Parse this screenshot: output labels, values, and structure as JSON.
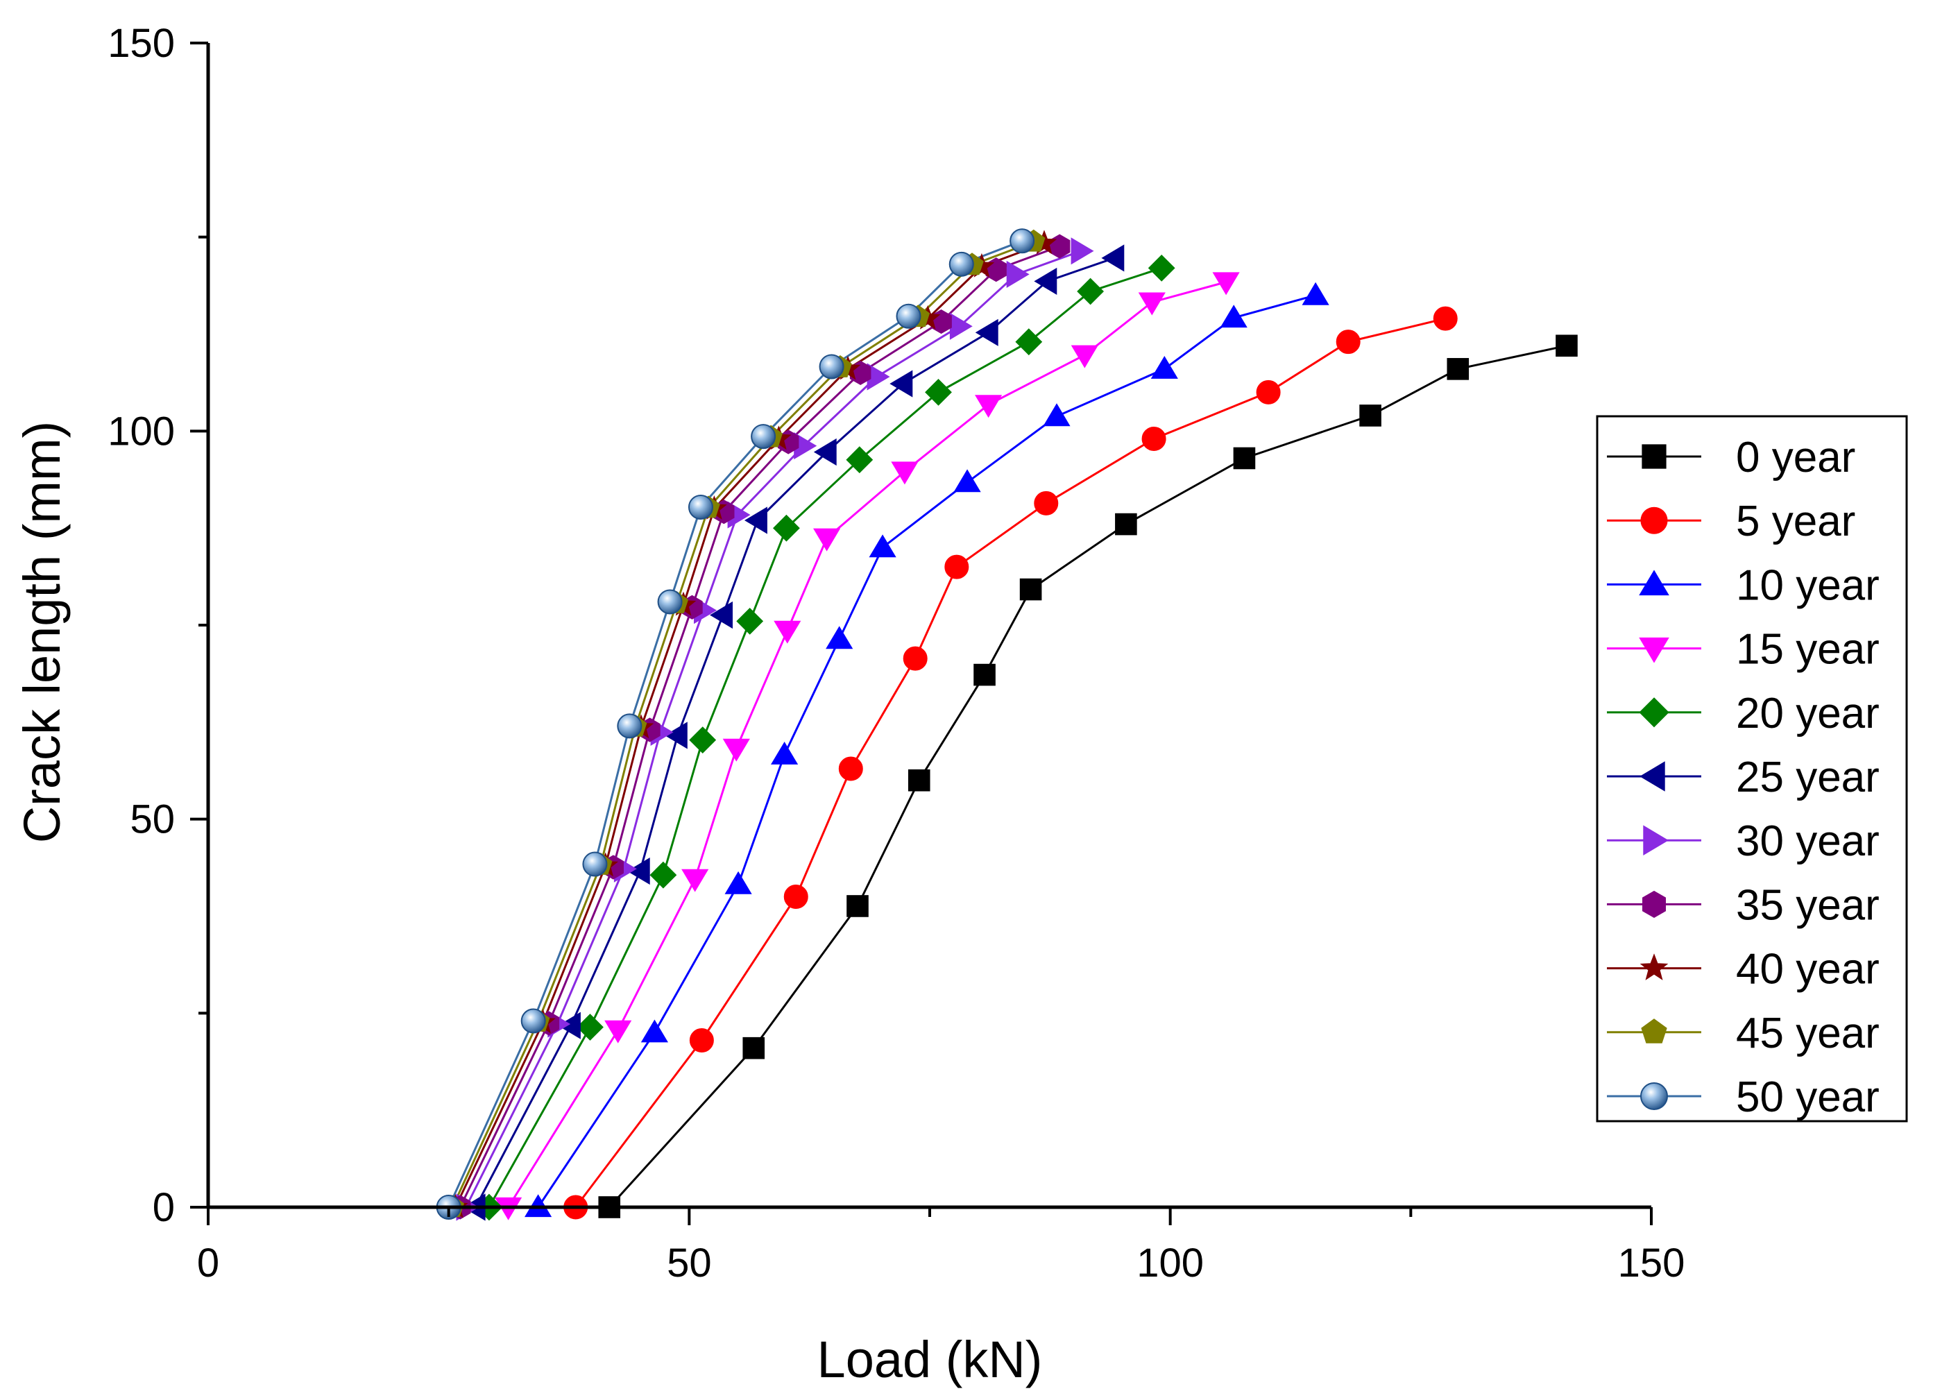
{
  "chart_data": {
    "type": "line",
    "xlabel": "Load (kN)",
    "ylabel": "Crack length (mm)",
    "xlim": [
      0,
      150
    ],
    "ylim": [
      0,
      150
    ],
    "xticks": [
      0,
      50,
      100,
      150
    ],
    "yticks": [
      0,
      50,
      100,
      150
    ],
    "xtick_labels": [
      "0",
      "50",
      "100",
      "150"
    ],
    "ytick_labels": [
      "0",
      "50",
      "100",
      "150"
    ],
    "grid": false,
    "legend_position": "right",
    "series": [
      {
        "name": "0 year",
        "color": "#000000",
        "marker": "square",
        "x": [
          41.7,
          56.7,
          67.5,
          73.9,
          80.7,
          85.5,
          95.4,
          107.7,
          120.8,
          129.9,
          141.2
        ],
        "y": [
          0,
          20.5,
          38.8,
          55,
          68.6,
          79.6,
          88,
          96.5,
          102,
          108,
          111
        ]
      },
      {
        "name": "5 year",
        "color": "#ff0000",
        "marker": "circle",
        "x": [
          38.2,
          51.3,
          61.1,
          66.8,
          73.5,
          77.8,
          87.1,
          98.3,
          110.2,
          118.5,
          128.6
        ],
        "y": [
          0,
          21.5,
          40,
          56.5,
          70.7,
          82.5,
          90.7,
          99,
          105,
          111.5,
          114.5
        ]
      },
      {
        "name": "10 year",
        "color": "#0000ff",
        "marker": "triangle-up",
        "x": [
          34.3,
          46.4,
          55.1,
          59.9,
          65.6,
          70.1,
          78.9,
          88.2,
          99.4,
          106.6,
          115.1
        ],
        "y": [
          0,
          22.5,
          41.6,
          58.3,
          73.2,
          85,
          93.4,
          101.9,
          108,
          114.6,
          117.5
        ]
      },
      {
        "name": "15 year",
        "color": "#ff00ff",
        "marker": "triangle-down",
        "x": [
          31.2,
          42.6,
          50.6,
          54.9,
          60.2,
          64.3,
          72.4,
          81.1,
          91.1,
          98.1,
          105.8
        ],
        "y": [
          0,
          22.8,
          42.3,
          59.1,
          74.3,
          86.2,
          94.8,
          103.4,
          109.8,
          116.6,
          119.2
        ]
      },
      {
        "name": "20 year",
        "color": "#008000",
        "marker": "diamond",
        "x": [
          29.2,
          39.7,
          47.3,
          51.4,
          56.3,
          60.1,
          67.7,
          75.9,
          85.3,
          91.7,
          99.1
        ],
        "y": [
          0,
          23.2,
          42.8,
          60.2,
          75.5,
          87.5,
          96.3,
          105,
          111.5,
          118,
          121
        ]
      },
      {
        "name": "25 year",
        "color": "#00008b",
        "marker": "triangle-left",
        "x": [
          27.8,
          37.7,
          44.9,
          48.8,
          53.5,
          57.1,
          64.3,
          72.2,
          81.1,
          87.2,
          94.2
        ],
        "y": [
          0,
          23.4,
          43.3,
          60.8,
          76.3,
          88.5,
          97.3,
          106.1,
          112.7,
          119.3,
          122.3
        ]
      },
      {
        "name": "30 year",
        "color": "#8a2be2",
        "marker": "triangle-right",
        "x": [
          26.8,
          36.3,
          43.2,
          47,
          51.5,
          55,
          61.9,
          69.5,
          78.1,
          84,
          90.7
        ],
        "y": [
          0,
          23.6,
          43.6,
          61.2,
          76.9,
          89.2,
          98.1,
          107,
          113.5,
          120.2,
          123.2
        ]
      },
      {
        "name": "35 year",
        "color": "#800080",
        "marker": "hexagon",
        "x": [
          26.2,
          35.4,
          42.1,
          45.9,
          50.3,
          53.6,
          60.3,
          67.8,
          76.2,
          81.9,
          88.5
        ],
        "y": [
          0,
          23.7,
          43.8,
          61.5,
          77.3,
          89.6,
          98.6,
          107.5,
          114.1,
          120.8,
          123.8
        ]
      },
      {
        "name": "40 year",
        "color": "#800000",
        "marker": "star",
        "x": [
          25.7,
          34.8,
          41.3,
          45,
          49.4,
          52.6,
          59.3,
          66.5,
          74.8,
          80.4,
          86.9
        ],
        "y": [
          0,
          23.8,
          44,
          61.8,
          77.6,
          90,
          99,
          108,
          114.5,
          121.2,
          124.2
        ]
      },
      {
        "name": "45 year",
        "color": "#808000",
        "marker": "pentagon",
        "x": [
          25.4,
          34.3,
          40.8,
          44.4,
          48.7,
          52,
          58.5,
          65.7,
          73.8,
          79.4,
          85.8
        ],
        "y": [
          0,
          23.9,
          44.1,
          61.9,
          77.8,
          90.1,
          99.2,
          108.2,
          114.7,
          121.4,
          124.4
        ]
      },
      {
        "name": "50 year",
        "color": "#3a6ea5",
        "marker": "sphere",
        "x": [
          25,
          33.8,
          40.2,
          43.8,
          48,
          51.2,
          57.7,
          64.8,
          72.8,
          78.3,
          84.6
        ],
        "y": [
          0,
          24,
          44.2,
          62,
          78,
          90.2,
          99.3,
          108.3,
          114.8,
          121.5,
          124.5
        ]
      }
    ]
  }
}
